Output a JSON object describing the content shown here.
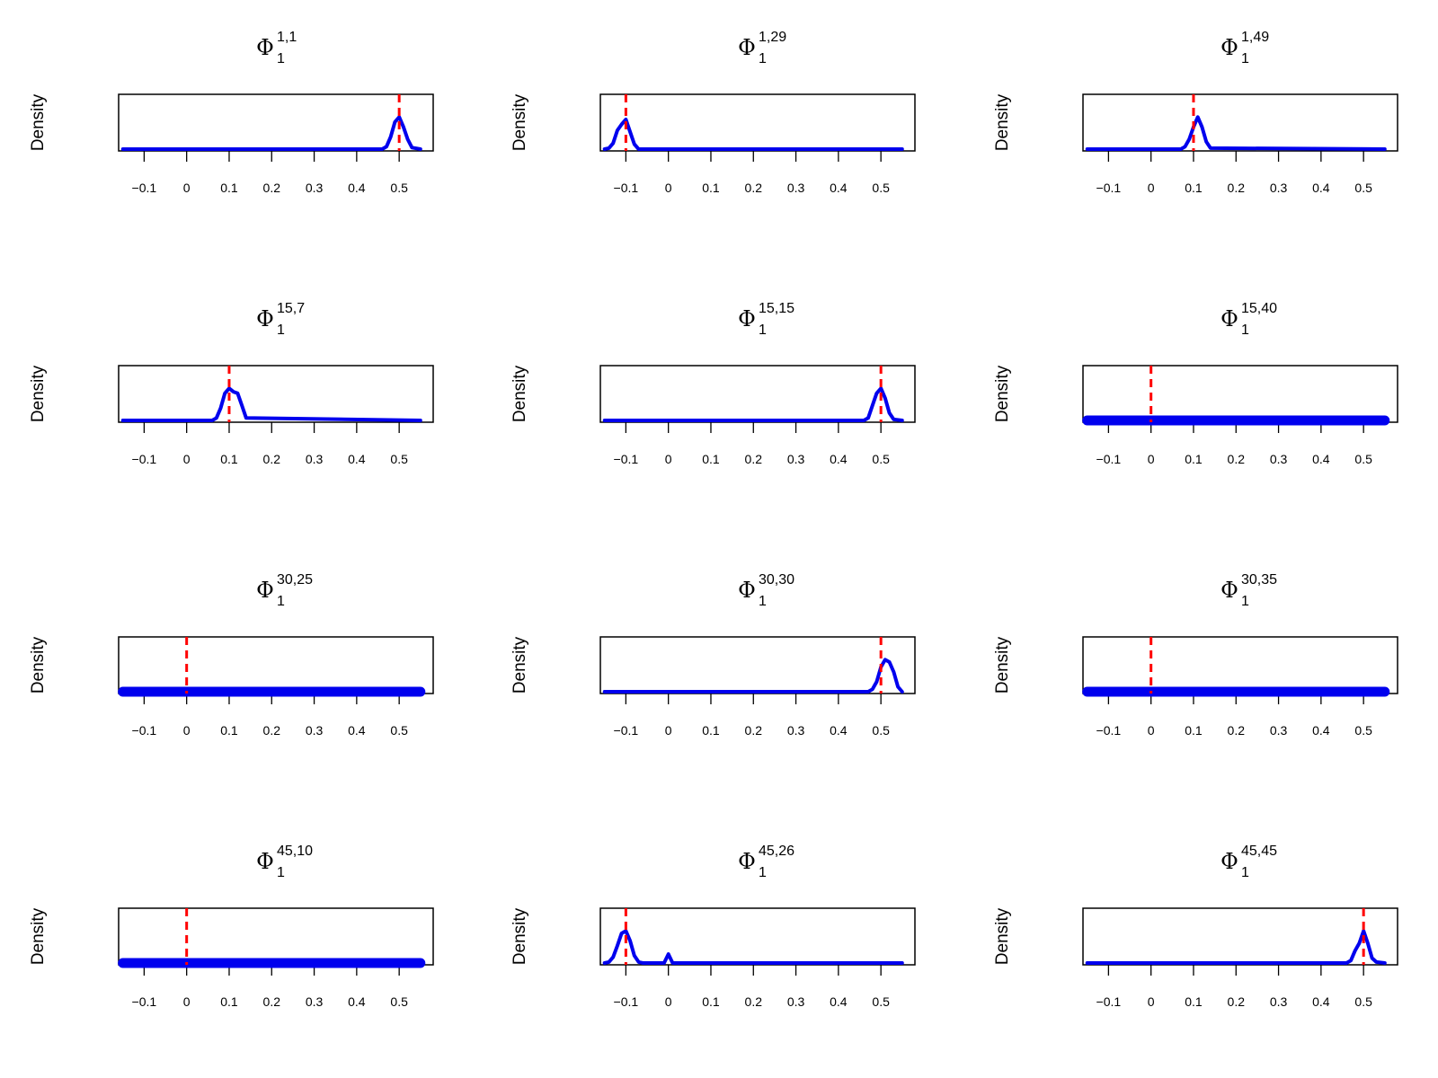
{
  "figure": {
    "ylabel": "Density",
    "symbol": "Φ",
    "subscript": "1"
  },
  "chart_data": [
    {
      "type": "line",
      "title_sup": "1,1",
      "ylabel": "Density",
      "xticks": [
        -0.1,
        0,
        0.1,
        0.2,
        0.3,
        0.4,
        0.5
      ],
      "xtick_labels": [
        "−0.1",
        "0",
        "0.1",
        "0.2",
        "0.3",
        "0.4",
        "0.5"
      ],
      "xlim": [
        -0.16,
        0.58
      ],
      "true_value": 0.5,
      "series": [
        {
          "x": [
            -0.15,
            0.46,
            0.47,
            0.48,
            0.49,
            0.5,
            0.51,
            0.52,
            0.53,
            0.55
          ],
          "y": [
            0,
            0,
            0.05,
            0.25,
            0.55,
            0.65,
            0.45,
            0.2,
            0.03,
            0
          ]
        }
      ]
    },
    {
      "type": "line",
      "title_sup": "1,29",
      "ylabel": "Density",
      "xticks": [
        -0.1,
        0,
        0.1,
        0.2,
        0.3,
        0.4,
        0.5
      ],
      "xtick_labels": [
        "−0.1",
        "0",
        "0.1",
        "0.2",
        "0.3",
        "0.4",
        "0.5"
      ],
      "xlim": [
        -0.16,
        0.58
      ],
      "true_value": -0.1,
      "series": [
        {
          "x": [
            -0.15,
            -0.14,
            -0.13,
            -0.12,
            -0.11,
            -0.1,
            -0.09,
            -0.08,
            -0.07,
            0.55
          ],
          "y": [
            0,
            0.02,
            0.12,
            0.38,
            0.5,
            0.6,
            0.35,
            0.1,
            0,
            0
          ]
        }
      ]
    },
    {
      "type": "line",
      "title_sup": "1,49",
      "ylabel": "Density",
      "xticks": [
        -0.1,
        0,
        0.1,
        0.2,
        0.3,
        0.4,
        0.5
      ],
      "xtick_labels": [
        "−0.1",
        "0",
        "0.1",
        "0.2",
        "0.3",
        "0.4",
        "0.5"
      ],
      "xlim": [
        -0.16,
        0.58
      ],
      "true_value": 0.1,
      "series": [
        {
          "x": [
            -0.15,
            0.07,
            0.08,
            0.09,
            0.1,
            0.11,
            0.12,
            0.13,
            0.14,
            0.55
          ],
          "y": [
            0,
            0,
            0.05,
            0.2,
            0.45,
            0.65,
            0.45,
            0.15,
            0.02,
            0
          ]
        }
      ]
    },
    {
      "type": "line",
      "title_sup": "15,7",
      "ylabel": "Density",
      "xticks": [
        -0.1,
        0,
        0.1,
        0.2,
        0.3,
        0.4,
        0.5
      ],
      "xtick_labels": [
        "−0.1",
        "0",
        "0.1",
        "0.2",
        "0.3",
        "0.4",
        "0.5"
      ],
      "xlim": [
        -0.16,
        0.58
      ],
      "true_value": 0.1,
      "series": [
        {
          "x": [
            -0.15,
            0.06,
            0.07,
            0.08,
            0.09,
            0.1,
            0.11,
            0.12,
            0.13,
            0.14,
            0.55
          ],
          "y": [
            0,
            0,
            0.05,
            0.25,
            0.55,
            0.65,
            0.58,
            0.55,
            0.3,
            0.05,
            0
          ]
        }
      ]
    },
    {
      "type": "line",
      "title_sup": "15,15",
      "ylabel": "Density",
      "xticks": [
        -0.1,
        0,
        0.1,
        0.2,
        0.3,
        0.4,
        0.5
      ],
      "xtick_labels": [
        "−0.1",
        "0",
        "0.1",
        "0.2",
        "0.3",
        "0.4",
        "0.5"
      ],
      "xlim": [
        -0.16,
        0.58
      ],
      "true_value": 0.5,
      "series": [
        {
          "x": [
            -0.15,
            0.46,
            0.47,
            0.48,
            0.49,
            0.5,
            0.51,
            0.52,
            0.53,
            0.55
          ],
          "y": [
            0,
            0,
            0.05,
            0.3,
            0.55,
            0.65,
            0.45,
            0.15,
            0.02,
            0
          ]
        }
      ]
    },
    {
      "type": "line",
      "title_sup": "15,40",
      "ylabel": "Density",
      "xticks": [
        -0.1,
        0,
        0.1,
        0.2,
        0.3,
        0.4,
        0.5
      ],
      "xtick_labels": [
        "−0.1",
        "0",
        "0.1",
        "0.2",
        "0.3",
        "0.4",
        "0.5"
      ],
      "xlim": [
        -0.16,
        0.58
      ],
      "true_value": 0,
      "series": [
        {
          "x": [
            -0.15,
            0.55
          ],
          "y": [
            0,
            0
          ]
        }
      ]
    },
    {
      "type": "line",
      "title_sup": "30,25",
      "ylabel": "Density",
      "xticks": [
        -0.1,
        0,
        0.1,
        0.2,
        0.3,
        0.4,
        0.5
      ],
      "xtick_labels": [
        "−0.1",
        "0",
        "0.1",
        "0.2",
        "0.3",
        "0.4",
        "0.5"
      ],
      "xlim": [
        -0.16,
        0.58
      ],
      "true_value": 0,
      "series": [
        {
          "x": [
            -0.15,
            0.55
          ],
          "y": [
            0,
            0
          ]
        }
      ]
    },
    {
      "type": "line",
      "title_sup": "30,30",
      "ylabel": "Density",
      "xticks": [
        -0.1,
        0,
        0.1,
        0.2,
        0.3,
        0.4,
        0.5
      ],
      "xtick_labels": [
        "−0.1",
        "0",
        "0.1",
        "0.2",
        "0.3",
        "0.4",
        "0.5"
      ],
      "xlim": [
        -0.16,
        0.58
      ],
      "true_value": 0.5,
      "series": [
        {
          "x": [
            -0.15,
            0.47,
            0.48,
            0.49,
            0.5,
            0.51,
            0.52,
            0.53,
            0.54,
            0.55
          ],
          "y": [
            0,
            0,
            0.05,
            0.2,
            0.5,
            0.65,
            0.6,
            0.4,
            0.1,
            0
          ]
        }
      ]
    },
    {
      "type": "line",
      "title_sup": "30,35",
      "ylabel": "Density",
      "xticks": [
        -0.1,
        0,
        0.1,
        0.2,
        0.3,
        0.4,
        0.5
      ],
      "xtick_labels": [
        "−0.1",
        "0",
        "0.1",
        "0.2",
        "0.3",
        "0.4",
        "0.5"
      ],
      "xlim": [
        -0.16,
        0.58
      ],
      "true_value": 0,
      "series": [
        {
          "x": [
            -0.15,
            0.55
          ],
          "y": [
            0,
            0
          ]
        }
      ]
    },
    {
      "type": "line",
      "title_sup": "45,10",
      "ylabel": "Density",
      "xticks": [
        -0.1,
        0,
        0.1,
        0.2,
        0.3,
        0.4,
        0.5
      ],
      "xtick_labels": [
        "−0.1",
        "0",
        "0.1",
        "0.2",
        "0.3",
        "0.4",
        "0.5"
      ],
      "xlim": [
        -0.16,
        0.58
      ],
      "true_value": 0,
      "series": [
        {
          "x": [
            -0.15,
            0.55
          ],
          "y": [
            0,
            0
          ]
        }
      ]
    },
    {
      "type": "line",
      "title_sup": "45,26",
      "ylabel": "Density",
      "xticks": [
        -0.1,
        0,
        0.1,
        0.2,
        0.3,
        0.4,
        0.5
      ],
      "xtick_labels": [
        "−0.1",
        "0",
        "0.1",
        "0.2",
        "0.3",
        "0.4",
        "0.5"
      ],
      "xlim": [
        -0.16,
        0.58
      ],
      "true_value": -0.1,
      "series": [
        {
          "x": [
            -0.15,
            -0.14,
            -0.13,
            -0.12,
            -0.11,
            -0.1,
            -0.09,
            -0.08,
            -0.07,
            -0.06,
            -0.01,
            0,
            0.01,
            0.55
          ],
          "y": [
            0,
            0.02,
            0.12,
            0.35,
            0.6,
            0.65,
            0.45,
            0.15,
            0.02,
            0,
            0,
            0.18,
            0,
            0
          ]
        }
      ]
    },
    {
      "type": "line",
      "title_sup": "45,45",
      "ylabel": "Density",
      "xticks": [
        -0.1,
        0,
        0.1,
        0.2,
        0.3,
        0.4,
        0.5
      ],
      "xtick_labels": [
        "−0.1",
        "0",
        "0.1",
        "0.2",
        "0.3",
        "0.4",
        "0.5"
      ],
      "xlim": [
        -0.16,
        0.58
      ],
      "true_value": 0.5,
      "series": [
        {
          "x": [
            -0.15,
            0.46,
            0.47,
            0.48,
            0.49,
            0.5,
            0.51,
            0.52,
            0.53,
            0.55
          ],
          "y": [
            0,
            0,
            0.05,
            0.25,
            0.4,
            0.65,
            0.4,
            0.1,
            0.02,
            0
          ]
        }
      ]
    }
  ]
}
